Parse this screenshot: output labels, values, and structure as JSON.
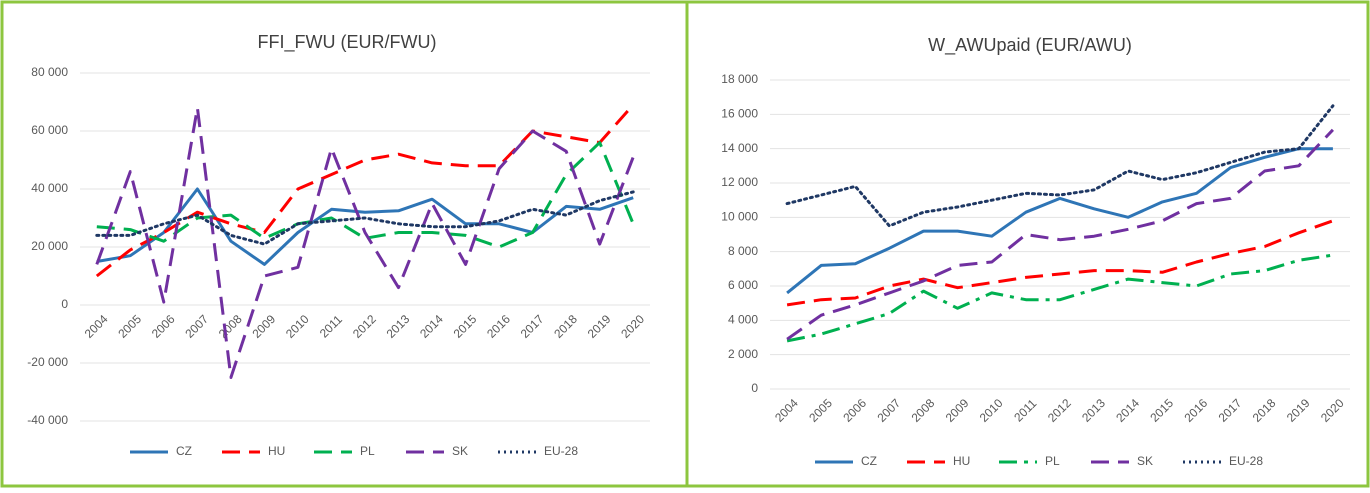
{
  "chart_data": [
    {
      "type": "line",
      "title": "FFI_FWU (EUR/FWU)",
      "categories": [
        "2004",
        "2005",
        "2006",
        "2007",
        "2008",
        "2009",
        "2010",
        "2011",
        "2012",
        "2013",
        "2014",
        "2015",
        "2016",
        "2017",
        "2018",
        "2019",
        "2020"
      ],
      "ylim": [
        -40000,
        80000
      ],
      "yticks": [
        {
          "value": -40000,
          "label": "-40 000"
        },
        {
          "value": -20000,
          "label": "-20 000"
        },
        0,
        {
          "value": 20000,
          "label": "20 000"
        },
        {
          "value": 40000,
          "label": "40 000"
        },
        {
          "value": 60000,
          "label": "60 000"
        },
        {
          "value": 80000,
          "label": "80 000"
        }
      ],
      "grid": true,
      "series": [
        {
          "name": "CZ",
          "color": "#2e75b6",
          "dash": "solid",
          "values": [
            15000,
            17000,
            25000,
            40000,
            22000,
            14000,
            25000,
            33000,
            32000,
            32500,
            36500,
            28000,
            28000,
            25000,
            34000,
            33000,
            37000
          ]
        },
        {
          "name": "HU",
          "color": "#ff0000",
          "dash": "dashed",
          "values": [
            10000,
            19000,
            25000,
            32000,
            28000,
            25000,
            40000,
            45000,
            50000,
            52000,
            49000,
            48000,
            48000,
            60000,
            58000,
            56000,
            69000
          ]
        },
        {
          "name": "PL",
          "color": "#00b050",
          "dash": "dashed",
          "values": [
            27000,
            26000,
            22000,
            30000,
            31000,
            23000,
            28000,
            30000,
            23000,
            25000,
            25000,
            24000,
            20000,
            25000,
            45000,
            56000,
            28000
          ]
        },
        {
          "name": "SK",
          "color": "#7030a0",
          "dash": "dashed",
          "values": [
            14000,
            46000,
            1000,
            68000,
            -25000,
            10000,
            13000,
            54000,
            25000,
            6000,
            35000,
            14000,
            47000,
            60000,
            53000,
            21000,
            51000
          ]
        },
        {
          "name": "EU-28",
          "color": "#1f3864",
          "dash": "dotted",
          "values": [
            24000,
            24000,
            28000,
            31000,
            24000,
            21000,
            28000,
            29000,
            30000,
            28000,
            27000,
            27000,
            29000,
            33000,
            31000,
            36000,
            39000
          ]
        }
      ]
    },
    {
      "type": "line",
      "title": "W_AWUpaid (EUR/AWU)",
      "categories": [
        "2004",
        "2005",
        "2006",
        "2007",
        "2008",
        "2009",
        "2010",
        "2011",
        "2012",
        "2013",
        "2014",
        "2015",
        "2016",
        "2017",
        "2018",
        "2019",
        "2020"
      ],
      "ylim": [
        0,
        18000
      ],
      "yticks": [
        0,
        {
          "value": 2000,
          "label": "2 000"
        },
        {
          "value": 4000,
          "label": "4 000"
        },
        {
          "value": 6000,
          "label": "6 000"
        },
        {
          "value": 8000,
          "label": "8 000"
        },
        {
          "value": 10000,
          "label": "10 000"
        },
        {
          "value": 12000,
          "label": "12 000"
        },
        {
          "value": 14000,
          "label": "14 000"
        },
        {
          "value": 16000,
          "label": "16 000"
        },
        {
          "value": 18000,
          "label": "18 000"
        }
      ],
      "grid": true,
      "series": [
        {
          "name": "CZ",
          "color": "#2e75b6",
          "dash": "solid",
          "values": [
            5600,
            7200,
            7300,
            8200,
            9200,
            9200,
            8900,
            10300,
            11100,
            10500,
            10000,
            10900,
            11400,
            12900,
            13500,
            14000,
            14000
          ]
        },
        {
          "name": "HU",
          "color": "#ff0000",
          "dash": "dashed",
          "values": [
            4900,
            5200,
            5300,
            6000,
            6400,
            5900,
            6200,
            6500,
            6700,
            6900,
            6900,
            6800,
            7400,
            7900,
            8300,
            9100,
            9800
          ]
        },
        {
          "name": "PL",
          "color": "#00b050",
          "dash": "dash-dot",
          "values": [
            2800,
            3200,
            3800,
            4400,
            5700,
            4700,
            5600,
            5200,
            5200,
            5800,
            6400,
            6200,
            6000,
            6700,
            6900,
            7500,
            7800
          ]
        },
        {
          "name": "SK",
          "color": "#7030a0",
          "dash": "dashed",
          "values": [
            2900,
            4300,
            4900,
            5600,
            6300,
            7200,
            7400,
            9000,
            8700,
            8900,
            9300,
            9800,
            10800,
            11100,
            12700,
            13000,
            15100
          ]
        },
        {
          "name": "EU-28",
          "color": "#1f3864",
          "dash": "dotted",
          "values": [
            10800,
            11300,
            11800,
            9500,
            10300,
            10600,
            11000,
            11400,
            11300,
            11600,
            12700,
            12200,
            12600,
            13200,
            13800,
            14000,
            16500
          ]
        }
      ]
    }
  ]
}
